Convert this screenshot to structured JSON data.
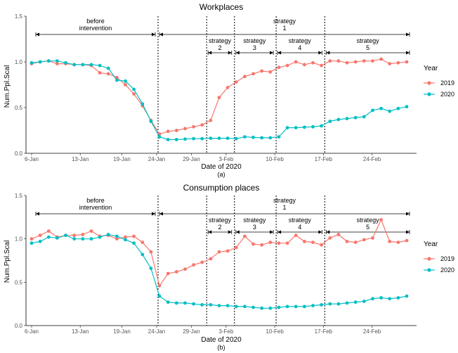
{
  "caption_a": "(a)",
  "caption_b": "(b)",
  "legend": {
    "title": "Year",
    "entries": [
      {
        "label": "2019",
        "color": "#f8766d"
      },
      {
        "label": "2020",
        "color": "#00bfc4"
      }
    ]
  },
  "chart_data": [
    {
      "type": "line",
      "title": "Workplaces",
      "xlabel": "Date of 2020",
      "ylabel": "Num.Ppl.Scal",
      "ylim": [
        0,
        1.5
      ],
      "yticks": [
        "0.0",
        "0.5",
        "1.0",
        "1.5"
      ],
      "x_start": "2020-01-06",
      "xticks": [
        {
          "label": "6-Jan",
          "day": 0
        },
        {
          "label": "13-Jan",
          "day": 7
        },
        {
          "label": "19-Jan",
          "day": 13
        },
        {
          "label": "24-Jan",
          "day": 18
        },
        {
          "label": "29-Jan",
          "day": 23
        },
        {
          "label": "3-Feb",
          "day": 28
        },
        {
          "label": "10-Feb",
          "day": 35
        },
        {
          "label": "17-Feb",
          "day": 42
        },
        {
          "label": "24-Feb",
          "day": 49
        }
      ],
      "vlines_day": [
        18,
        25,
        29,
        35,
        42
      ],
      "annotations": [
        {
          "text": [
            "before",
            "intervention"
          ],
          "from": 0,
          "to": 18
        },
        {
          "text": [
            "strategy",
            "1"
          ],
          "from": 18,
          "to": 56
        }
      ],
      "strategy_labels": [
        {
          "text": [
            "strategy",
            "2"
          ],
          "from": 25,
          "to": 29
        },
        {
          "text": [
            "strategy",
            "3"
          ],
          "from": 29,
          "to": 35
        },
        {
          "text": [
            "strategy",
            "4"
          ],
          "from": 35,
          "to": 42
        },
        {
          "text": [
            "strategy",
            "5"
          ],
          "from": 42,
          "to": 56
        }
      ],
      "series": [
        {
          "name": "2019",
          "color": "#f8766d",
          "values": [
            0.98,
            1.0,
            1.01,
            0.98,
            0.98,
            0.97,
            0.97,
            0.96,
            0.88,
            0.87,
            0.83,
            0.75,
            0.65,
            0.52,
            0.36,
            0.21,
            0.24,
            0.25,
            0.27,
            0.29,
            0.31,
            0.36,
            0.61,
            0.72,
            0.78,
            0.84,
            0.87,
            0.9,
            0.89,
            0.94,
            0.96,
            1.0,
            0.97,
            0.99,
            0.96,
            1.01,
            1.01,
            0.99,
            1.0,
            1.01,
            1.01,
            1.03,
            0.98,
            0.99,
            1.0
          ]
        },
        {
          "name": "2020",
          "color": "#00bfc4",
          "values": [
            0.99,
            1.0,
            1.01,
            1.01,
            0.99,
            0.97,
            0.97,
            0.97,
            0.96,
            0.93,
            0.8,
            0.79,
            0.7,
            0.54,
            0.35,
            0.18,
            0.15,
            0.15,
            0.155,
            0.16,
            0.16,
            0.165,
            0.165,
            0.165,
            0.16,
            0.18,
            0.175,
            0.17,
            0.17,
            0.18,
            0.28,
            0.28,
            0.285,
            0.29,
            0.3,
            0.35,
            0.37,
            0.38,
            0.39,
            0.4,
            0.47,
            0.49,
            0.46,
            0.49,
            0.51
          ]
        }
      ]
    },
    {
      "type": "line",
      "title": "Consumption places",
      "xlabel": "Date of 2020",
      "ylabel": "Num.Ppl.Scal",
      "ylim": [
        0,
        1.5
      ],
      "yticks": [
        "0.0",
        "0.5",
        "1.0",
        "1.5"
      ],
      "x_start": "2020-01-06",
      "xticks": [
        {
          "label": "6-Jan",
          "day": 0
        },
        {
          "label": "13-Jan",
          "day": 7
        },
        {
          "label": "19-Jan",
          "day": 13
        },
        {
          "label": "24-Jan",
          "day": 18
        },
        {
          "label": "29-Jan",
          "day": 23
        },
        {
          "label": "3-Feb",
          "day": 28
        },
        {
          "label": "10-Feb",
          "day": 35
        },
        {
          "label": "17-Feb",
          "day": 42
        },
        {
          "label": "24-Feb",
          "day": 49
        }
      ],
      "vlines_day": [
        18,
        25,
        29,
        35,
        42
      ],
      "annotations": [
        {
          "text": [
            "before",
            "intervention"
          ],
          "from": 0,
          "to": 18
        },
        {
          "text": [
            "strategy",
            "1"
          ],
          "from": 18,
          "to": 56
        }
      ],
      "strategy_labels": [
        {
          "text": [
            "strategy",
            "2"
          ],
          "from": 25,
          "to": 29
        },
        {
          "text": [
            "strategy",
            "3"
          ],
          "from": 29,
          "to": 35
        },
        {
          "text": [
            "strategy",
            "4"
          ],
          "from": 35,
          "to": 42
        },
        {
          "text": [
            "strategy",
            "5"
          ],
          "from": 42,
          "to": 56
        }
      ],
      "series": [
        {
          "name": "2019",
          "color": "#f8766d",
          "values": [
            1.0,
            1.04,
            1.09,
            1.02,
            1.04,
            1.04,
            1.05,
            1.09,
            1.03,
            1.04,
            1.0,
            1.02,
            1.03,
            0.96,
            0.85,
            0.46,
            0.6,
            0.62,
            0.65,
            0.7,
            0.73,
            0.77,
            0.85,
            0.86,
            0.9,
            1.03,
            0.94,
            0.93,
            0.96,
            0.95,
            0.95,
            1.04,
            0.97,
            0.96,
            0.93,
            1.01,
            1.05,
            0.97,
            0.96,
            0.99,
            1.01,
            1.22,
            0.97,
            0.96,
            0.98
          ]
        },
        {
          "name": "2020",
          "color": "#00bfc4",
          "values": [
            0.95,
            0.97,
            1.02,
            1.01,
            1.04,
            1.0,
            1.0,
            1.0,
            1.02,
            1.05,
            1.03,
            0.99,
            0.95,
            0.82,
            0.66,
            0.34,
            0.27,
            0.26,
            0.26,
            0.25,
            0.24,
            0.24,
            0.23,
            0.23,
            0.22,
            0.22,
            0.21,
            0.2,
            0.2,
            0.21,
            0.22,
            0.22,
            0.22,
            0.23,
            0.24,
            0.25,
            0.25,
            0.26,
            0.27,
            0.28,
            0.31,
            0.32,
            0.31,
            0.32,
            0.34
          ]
        }
      ]
    }
  ]
}
